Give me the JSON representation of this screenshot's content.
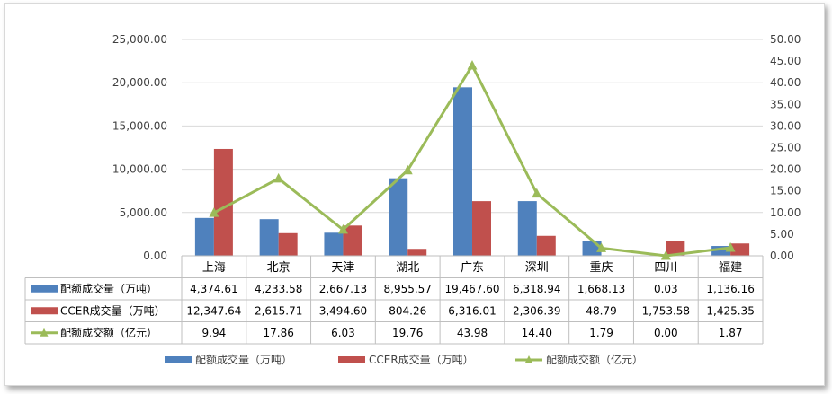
{
  "chart_data": {
    "type": "bar",
    "categories": [
      "上海",
      "北京",
      "天津",
      "湖北",
      "广东",
      "深圳",
      "重庆",
      "四川",
      "福建"
    ],
    "series": [
      {
        "name": "配额成交量（万吨）",
        "type": "bar",
        "axis": "left",
        "color": "#4f81bd",
        "values": [
          4374.61,
          4233.58,
          2667.13,
          8955.57,
          19467.6,
          6318.94,
          1668.13,
          0.03,
          1136.16
        ],
        "labels": [
          "4,374.61",
          "4,233.58",
          "2,667.13",
          "8,955.57",
          "19,467.60",
          "6,318.94",
          "1,668.13",
          "0.03",
          "1,136.16"
        ]
      },
      {
        "name": "CCER成交量（万吨）",
        "type": "bar",
        "axis": "left",
        "color": "#c0504d",
        "values": [
          12347.64,
          2615.71,
          3494.6,
          804.26,
          6316.01,
          2306.39,
          48.79,
          1753.58,
          1425.35
        ],
        "labels": [
          "12,347.64",
          "2,615.71",
          "3,494.60",
          "804.26",
          "6,316.01",
          "2,306.39",
          "48.79",
          "1,753.58",
          "1,425.35"
        ]
      },
      {
        "name": "配额成交额（亿元）",
        "type": "line",
        "axis": "right",
        "color": "#9bbb59",
        "values": [
          9.94,
          17.86,
          6.03,
          19.76,
          43.98,
          14.4,
          1.79,
          0.0,
          1.87
        ],
        "labels": [
          "9.94",
          "17.86",
          "6.03",
          "19.76",
          "43.98",
          "14.40",
          "1.79",
          "0.00",
          "1.87"
        ]
      }
    ],
    "left_axis": {
      "min": 0,
      "max": 25000,
      "step": 5000,
      "tick_labels": [
        "0.00",
        "5,000.00",
        "10,000.00",
        "15,000.00",
        "20,000.00",
        "25,000.00"
      ]
    },
    "right_axis": {
      "min": 0,
      "max": 50,
      "step": 5,
      "tick_labels": [
        "0.00",
        "5.00",
        "10.00",
        "15.00",
        "20.00",
        "25.00",
        "30.00",
        "35.00",
        "40.00",
        "45.00",
        "50.00"
      ]
    },
    "grid": true,
    "legend_position": "bottom",
    "data_table": true
  }
}
